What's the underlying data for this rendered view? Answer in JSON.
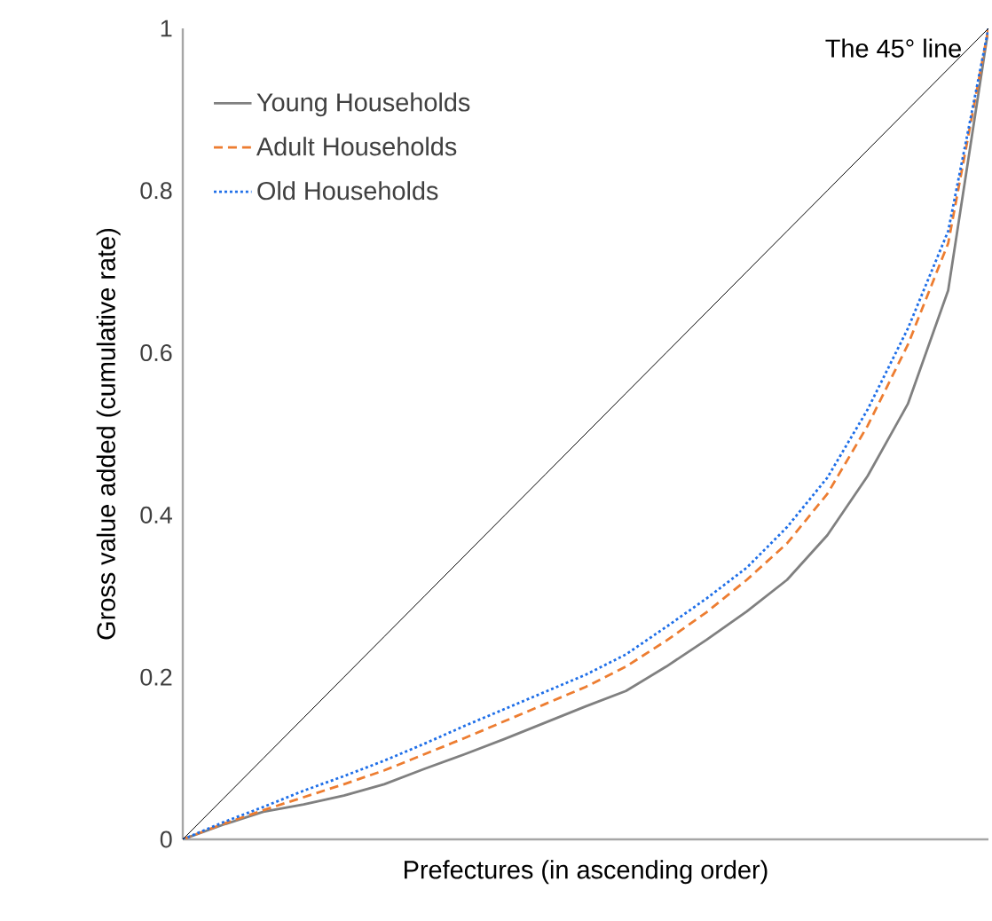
{
  "chart_data": {
    "type": "line",
    "xlabel": "Prefectures (in ascending order)",
    "ylabel": "Gross value added (cumulative rate)",
    "categories": [
      null,
      null,
      null,
      null,
      null,
      null,
      null,
      null,
      null,
      null,
      null,
      null,
      null,
      null,
      null,
      null,
      null,
      null,
      null,
      null,
      null
    ],
    "ylim": [
      0,
      1
    ],
    "yticks": [
      0,
      0.2,
      0.4,
      0.6,
      0.8,
      1
    ],
    "tick_labels": "y",
    "legend": "top left",
    "marker": "none",
    "annotations": [
      "The 45° line"
    ],
    "series": [
      {
        "name": "Young Households",
        "color": "#808080",
        "line_style": "solid",
        "values": [
          0,
          0.018,
          0.034,
          0.043,
          0.054,
          0.068,
          0.087,
          0.105,
          0.124,
          0.144,
          0.164,
          0.183,
          0.213,
          0.246,
          0.281,
          0.32,
          0.375,
          0.448,
          0.537,
          0.677,
          1
        ]
      },
      {
        "name": "Adult Households",
        "color": "#ed7d31",
        "line_style": "dashed",
        "values": [
          0,
          0.019,
          0.036,
          0.052,
          0.068,
          0.085,
          0.105,
          0.125,
          0.146,
          0.167,
          0.188,
          0.213,
          0.245,
          0.28,
          0.32,
          0.365,
          0.426,
          0.51,
          0.61,
          0.735,
          1
        ]
      },
      {
        "name": "Old Households",
        "color": "#1f6fe8",
        "line_style": "dotted",
        "values": [
          0,
          0.021,
          0.04,
          0.06,
          0.078,
          0.097,
          0.118,
          0.14,
          0.161,
          0.182,
          0.203,
          0.228,
          0.262,
          0.297,
          0.335,
          0.385,
          0.446,
          0.53,
          0.63,
          0.75,
          1
        ]
      },
      {
        "color": "#000000",
        "line_style": "solid",
        "values": [
          0,
          0.05,
          0.1,
          0.15,
          0.2,
          0.25,
          0.3,
          0.35,
          0.4,
          0.45,
          0.5,
          0.55,
          0.6,
          0.65,
          0.7,
          0.75,
          0.8,
          0.85,
          0.9,
          0.95,
          1
        ]
      }
    ]
  }
}
